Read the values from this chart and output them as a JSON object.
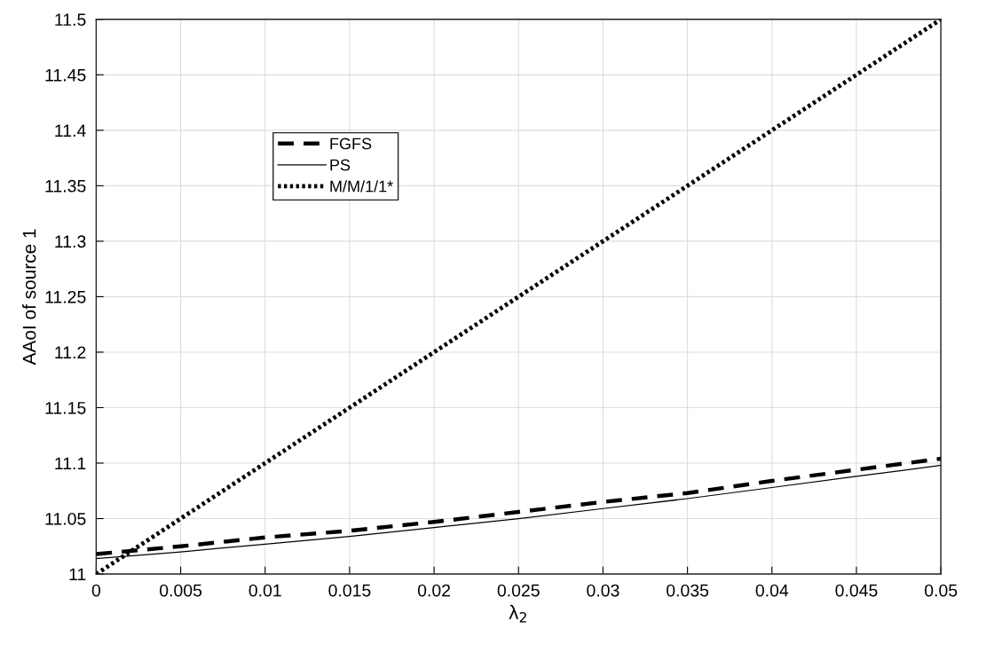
{
  "chart_data": {
    "type": "line",
    "xlabel": "λ$_{2}$",
    "ylabel": "AAoI of source 1",
    "x": [
      0,
      0.005,
      0.01,
      0.015,
      0.02,
      0.025,
      0.03,
      0.035,
      0.04,
      0.045,
      0.05
    ],
    "series": [
      {
        "name": "FGFS",
        "color": "#000000",
        "line_style": "dashed",
        "values": [
          11.018,
          11.025,
          11.033,
          11.039,
          11.047,
          11.056,
          11.065,
          11.073,
          11.084,
          11.094,
          11.104
        ]
      },
      {
        "name": "PS",
        "color": "#000000",
        "line_style": "solid",
        "values": [
          11.014,
          11.02,
          11.027,
          11.034,
          11.042,
          11.05,
          11.059,
          11.068,
          11.078,
          11.088,
          11.098
        ]
      },
      {
        "name": "M/M/1/1*",
        "color": "#000000",
        "line_style": "dotted",
        "values": [
          11.0,
          11.05,
          11.1,
          11.15,
          11.2,
          11.25,
          11.3,
          11.35,
          11.4,
          11.45,
          11.5
        ]
      }
    ],
    "xlim": [
      0,
      0.05
    ],
    "ylim": [
      11,
      11.5
    ],
    "xticks": [
      0,
      0.005,
      0.01,
      0.015,
      0.02,
      0.025,
      0.03,
      0.035,
      0.04,
      0.045,
      0.05
    ],
    "yticks": [
      11,
      11.05,
      11.1,
      11.15,
      11.2,
      11.25,
      11.3,
      11.35,
      11.4,
      11.45,
      11.5
    ],
    "grid": true,
    "legend": "top left"
  }
}
